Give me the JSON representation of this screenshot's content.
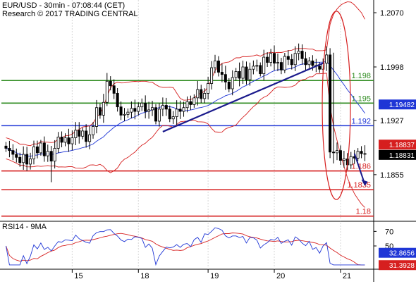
{
  "header": {
    "title": "EUR/USD - 30min - 07:08:44 (CET)",
    "subtitle": "Research © 2017 TRADING CENTRAL"
  },
  "chart_data": [
    {
      "type": "candlestick",
      "title": "EUR/USD - 30min",
      "ylim": [
        1.1795,
        1.2085
      ],
      "y_ticks": [
        "1.2070",
        "1.1998",
        "1.1927",
        "1.1855"
      ],
      "x_ticks": [
        {
          "label": "15",
          "index": 19
        },
        {
          "label": "18",
          "index": 38
        },
        {
          "label": "19",
          "index": 58
        },
        {
          "label": "20",
          "index": 77
        },
        {
          "label": "21",
          "index": 96
        }
      ],
      "n_bars": 104,
      "horizontal_levels": [
        {
          "value": 1.198,
          "label": "1.198",
          "color": "#2e8b1f"
        },
        {
          "value": 1.195,
          "label": "1.195",
          "color": "#2e8b1f"
        },
        {
          "value": 1.192,
          "label": "1.192",
          "color": "#1f36d6"
        },
        {
          "value": 1.186,
          "label": "1.186",
          "color": "#d61f1f"
        },
        {
          "value": 1.1835,
          "label": "1.1835",
          "color": "#d61f1f"
        },
        {
          "value": 1.18,
          "label": "1.18",
          "color": "#d61f1f"
        }
      ],
      "price_badges": [
        {
          "value": 1.19482,
          "label": "1.19482",
          "color": "#1f36d6"
        },
        {
          "value": 1.18837,
          "label": "1.18837",
          "color": "#d61f1f"
        },
        {
          "value": 1.18831,
          "label": "1.18831",
          "color": "#000000"
        }
      ],
      "trendline": {
        "from": {
          "index": 45,
          "value": 1.1912
        },
        "to": {
          "index": 91,
          "value": 1.2003
        }
      },
      "forecast_arrow": {
        "from": {
          "index": 100,
          "value": 1.1883
        },
        "to": {
          "index": 103,
          "value": 1.1842
        }
      },
      "close_series": [
        1.189,
        1.1887,
        1.1882,
        1.1878,
        1.1871,
        1.1882,
        1.1869,
        1.1876,
        1.1892,
        1.1884,
        1.1897,
        1.188,
        1.1886,
        1.1873,
        1.189,
        1.1905,
        1.1898,
        1.1904,
        1.1896,
        1.1904,
        1.1914,
        1.1906,
        1.1913,
        1.1899,
        1.1908,
        1.1919,
        1.1944,
        1.1934,
        1.1951,
        1.1979,
        1.1973,
        1.1963,
        1.1945,
        1.1934,
        1.1935,
        1.1938,
        1.1943,
        1.1939,
        1.1945,
        1.195,
        1.1939,
        1.1941,
        1.1944,
        1.1926,
        1.1942,
        1.1947,
        1.1942,
        1.1929,
        1.1932,
        1.1942,
        1.1939,
        1.1944,
        1.1952,
        1.1948,
        1.1957,
        1.1968,
        1.1956,
        1.1963,
        1.1976,
        1.1997,
        1.2006,
        1.1991,
        1.1988,
        1.1978,
        1.1969,
        1.1984,
        1.1992,
        1.1983,
        1.1998,
        1.1981,
        1.1995,
        1.1999,
        1.2,
        1.1989,
        1.2011,
        1.2004,
        1.2016,
        1.2003,
        1.2004,
        1.1994,
        1.2012,
        1.2008,
        1.2001,
        1.2016,
        1.2019,
        1.2009,
        1.2001,
        1.2006,
        1.2,
        1.1999,
        1.1995,
        1.2003,
        1.2014,
        1.1885,
        1.1884,
        1.1887,
        1.1874,
        1.1876,
        1.1868,
        1.1879,
        1.1877,
        1.1886,
        1.1883,
        1.1883
      ],
      "bollinger": {
        "period": 20,
        "std_dev": 2,
        "color": "#d61f1f"
      },
      "moving_average": {
        "period": 20,
        "color": "#1f36d6"
      }
    },
    {
      "type": "line",
      "title": "RSI14 - 9MA",
      "ylim": [
        20,
        80
      ],
      "y_ticks": [
        "70",
        "50"
      ],
      "badges": [
        {
          "value": 32.8656,
          "label": "32.8656",
          "color": "#1f36d6"
        },
        {
          "value": 31.3928,
          "label": "31.3928",
          "color": "#d61f1f"
        }
      ],
      "series": [
        {
          "name": "RSI14",
          "color": "#1f36d6"
        },
        {
          "name": "9MA",
          "color": "#d61f1f"
        }
      ]
    }
  ]
}
